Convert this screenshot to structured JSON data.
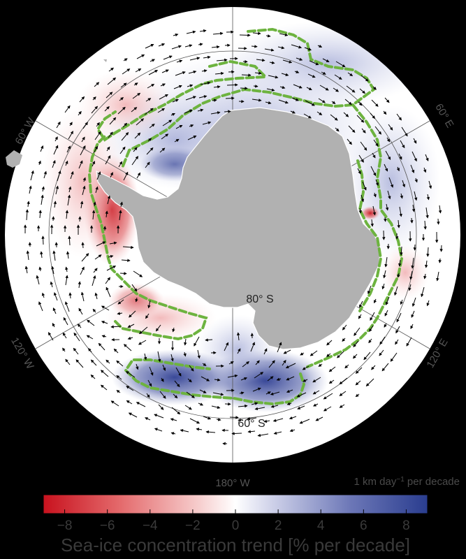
{
  "map": {
    "longitude_labels": {
      "w60": "60° W",
      "e60": "60° E",
      "w120": "120° W",
      "e120": "120° E",
      "w180": "180° W"
    },
    "latitude_labels": {
      "s80": "80° S",
      "s60": "60° S"
    },
    "reference_vector_label": "1 km day",
    "reference_vector_superscript": "−1",
    "reference_vector_suffix": " per decade"
  },
  "colorbar": {
    "title": "Sea-ice concentration trend [% per decade]",
    "ticks": [
      "−8",
      "−6",
      "−4",
      "−2",
      "0",
      "2",
      "4",
      "6",
      "8"
    ],
    "range": [
      -9,
      9
    ],
    "colors": {
      "negative": "#c8121e",
      "neutral": "#ffffff",
      "positive": "#2a3d8f"
    }
  },
  "colors": {
    "land": "#b1b1b1",
    "ocean": "#ffffff",
    "ice_edge": "#6db33f",
    "vectors": "#000000"
  }
}
